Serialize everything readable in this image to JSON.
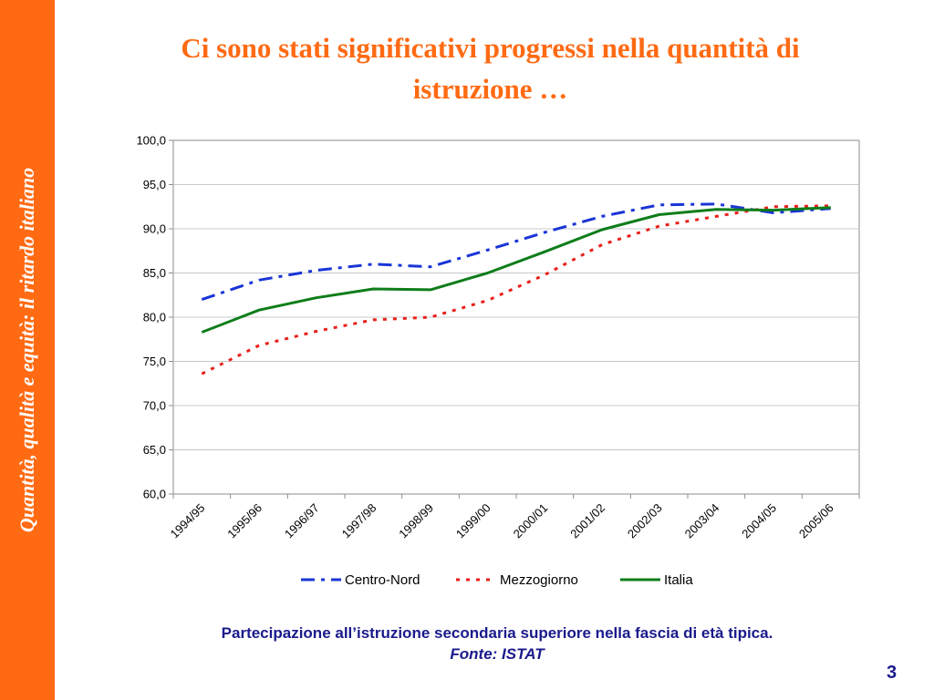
{
  "sidebar": {
    "text": "Quantità, qualità e equità: il ritardo italiano"
  },
  "slide": {
    "title": "Ci sono stati significativi progressi nella quantità di istruzione …",
    "caption_line1": "Partecipazione all’istruzione secondaria superiore nella fascia di età tipica.",
    "caption_line2": "Fonte: ISTAT",
    "page_number": "3"
  },
  "chart_data": {
    "type": "line",
    "title": "",
    "xlabel": "",
    "ylabel": "",
    "categories": [
      "1994/95",
      "1995/96",
      "1996/97",
      "1997/98",
      "1998/99",
      "1999/00",
      "2000/01",
      "2001/02",
      "2002/03",
      "2003/04",
      "2004/05",
      "2005/06"
    ],
    "ylim": [
      60,
      100
    ],
    "yticks": [
      "60,0",
      "65,0",
      "70,0",
      "75,0",
      "80,0",
      "85,0",
      "90,0",
      "95,0",
      "100,0"
    ],
    "grid": true,
    "legend_position": "bottom",
    "series": [
      {
        "name": "Centro-Nord",
        "values": [
          82.0,
          84.2,
          85.3,
          86.0,
          85.7,
          87.6,
          89.6,
          91.4,
          92.7,
          92.8,
          91.8,
          92.3
        ],
        "color": "#1a35d6",
        "dash": "dashdot"
      },
      {
        "name": "Mezzogiorno",
        "values": [
          73.6,
          76.8,
          78.4,
          79.7,
          80.0,
          81.9,
          84.8,
          88.2,
          90.3,
          91.4,
          92.5,
          92.6
        ],
        "color": "#e8201a",
        "dash": "dot"
      },
      {
        "name": "Italia",
        "values": [
          78.3,
          80.8,
          82.2,
          83.2,
          83.1,
          85.0,
          87.4,
          89.9,
          91.6,
          92.2,
          92.1,
          92.4
        ],
        "color": "#0f7d1a",
        "dash": "solid"
      }
    ]
  }
}
